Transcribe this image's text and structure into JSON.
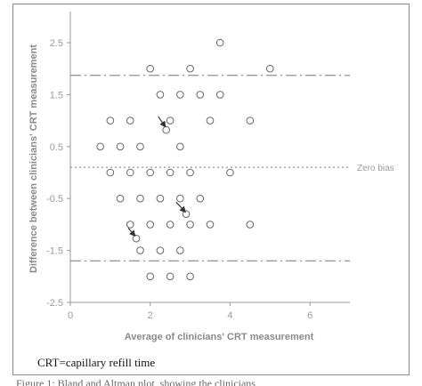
{
  "caption": "CRT=capillary refill time",
  "cut_off_text": "Figure 1: Bland and Altman plot, showing the clinicians",
  "chart_data": {
    "type": "scatter",
    "xlabel": "Average of clinicians' CRT measurement",
    "ylabel": "Difference between clinicians' CRT measurement",
    "xlim": [
      0,
      7
    ],
    "ylim": [
      -2.5,
      2.75
    ],
    "x_ticks": [
      "0",
      "2",
      "4",
      "6"
    ],
    "y_ticks": [
      "2.5",
      "1.5",
      "0.5",
      "-0.5",
      "-1.5",
      "-2.5"
    ],
    "x_tick_values": [
      0,
      2,
      4,
      6
    ],
    "y_tick_values": [
      2.5,
      1.5,
      0.5,
      -0.5,
      -1.5,
      -2.5
    ],
    "grid": false,
    "reference_lines": [
      {
        "y": 1.87,
        "style": "dash-dot"
      },
      {
        "y": 0.1,
        "style": "dotted",
        "label": "Zero bias"
      },
      {
        "y": -1.7,
        "style": "dash-dot"
      }
    ],
    "points": [
      {
        "x": 3.75,
        "y": 2.5
      },
      {
        "x": 2.0,
        "y": 2.0
      },
      {
        "x": 3.0,
        "y": 2.0
      },
      {
        "x": 5.0,
        "y": 2.0
      },
      {
        "x": 2.25,
        "y": 1.5
      },
      {
        "x": 2.75,
        "y": 1.5
      },
      {
        "x": 3.25,
        "y": 1.5
      },
      {
        "x": 3.75,
        "y": 1.5
      },
      {
        "x": 1.0,
        "y": 1.0
      },
      {
        "x": 1.5,
        "y": 1.0
      },
      {
        "x": 2.5,
        "y": 1.0
      },
      {
        "x": 3.5,
        "y": 1.0
      },
      {
        "x": 4.5,
        "y": 1.0
      },
      {
        "x": 2.4,
        "y": 0.82
      },
      {
        "x": 0.75,
        "y": 0.5
      },
      {
        "x": 1.25,
        "y": 0.5
      },
      {
        "x": 1.75,
        "y": 0.5
      },
      {
        "x": 2.75,
        "y": 0.5
      },
      {
        "x": 1.0,
        "y": 0.0
      },
      {
        "x": 1.5,
        "y": 0.0
      },
      {
        "x": 2.0,
        "y": 0.0
      },
      {
        "x": 2.5,
        "y": 0.0
      },
      {
        "x": 3.0,
        "y": 0.0
      },
      {
        "x": 4.0,
        "y": 0.0
      },
      {
        "x": 1.25,
        "y": -0.5
      },
      {
        "x": 1.75,
        "y": -0.5
      },
      {
        "x": 2.25,
        "y": -0.5
      },
      {
        "x": 2.75,
        "y": -0.5
      },
      {
        "x": 3.25,
        "y": -0.5
      },
      {
        "x": 2.9,
        "y": -0.8
      },
      {
        "x": 1.5,
        "y": -1.0
      },
      {
        "x": 2.0,
        "y": -1.0
      },
      {
        "x": 2.5,
        "y": -1.0
      },
      {
        "x": 3.0,
        "y": -1.0
      },
      {
        "x": 3.5,
        "y": -1.0
      },
      {
        "x": 4.5,
        "y": -1.0
      },
      {
        "x": 1.65,
        "y": -1.27
      },
      {
        "x": 1.75,
        "y": -1.5
      },
      {
        "x": 2.25,
        "y": -1.5
      },
      {
        "x": 2.75,
        "y": -1.5
      },
      {
        "x": 2.0,
        "y": -2.0
      },
      {
        "x": 2.5,
        "y": -2.0
      },
      {
        "x": 3.0,
        "y": -2.0
      }
    ],
    "arrows": [
      {
        "from": {
          "x": 2.2,
          "y": 1.08
        },
        "to": {
          "x": 2.38,
          "y": 0.88
        }
      },
      {
        "from": {
          "x": 2.65,
          "y": -0.57
        },
        "to": {
          "x": 2.88,
          "y": -0.76
        }
      },
      {
        "from": {
          "x": 1.45,
          "y": -1.07
        },
        "to": {
          "x": 1.62,
          "y": -1.22
        }
      }
    ],
    "colors": {
      "marker": "#666666",
      "axis": "#999999",
      "lines": "#777777",
      "arrow": "#333333"
    }
  }
}
